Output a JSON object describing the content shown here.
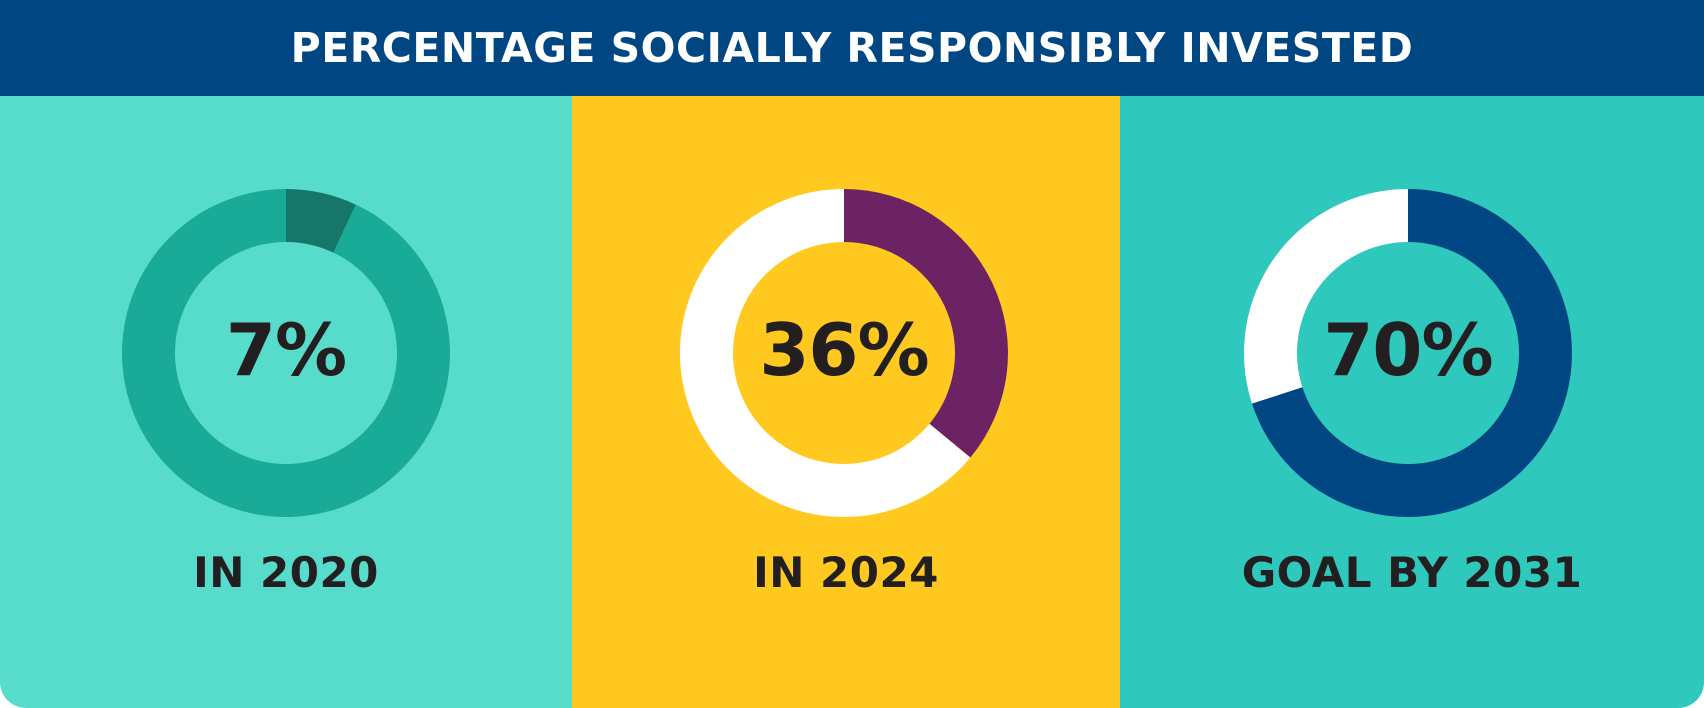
{
  "header": {
    "title": "PERCENTAGE SOCIALLY RESPONSIBLY INVESTED",
    "background": "#004682",
    "text_color": "#ffffff"
  },
  "chart_data": [
    {
      "type": "pie",
      "value": 7,
      "value_label": "7%",
      "label": "IN 2020",
      "colors": {
        "panel": "#57dccc",
        "filled": "#16766a",
        "remainder": "#19ab98",
        "text": "#231f20"
      }
    },
    {
      "type": "pie",
      "value": 36,
      "value_label": "36%",
      "label": "IN 2024",
      "colors": {
        "panel": "#ffc91f",
        "filled": "#6d2263",
        "remainder": "#ffffff",
        "text": "#231f20"
      }
    },
    {
      "type": "pie",
      "value": 70,
      "value_label": "70%",
      "label": "GOAL BY 2031",
      "colors": {
        "panel": "#2ec8bd",
        "filled": "#004682",
        "remainder": "#ffffff",
        "text": "#231f20"
      }
    }
  ]
}
